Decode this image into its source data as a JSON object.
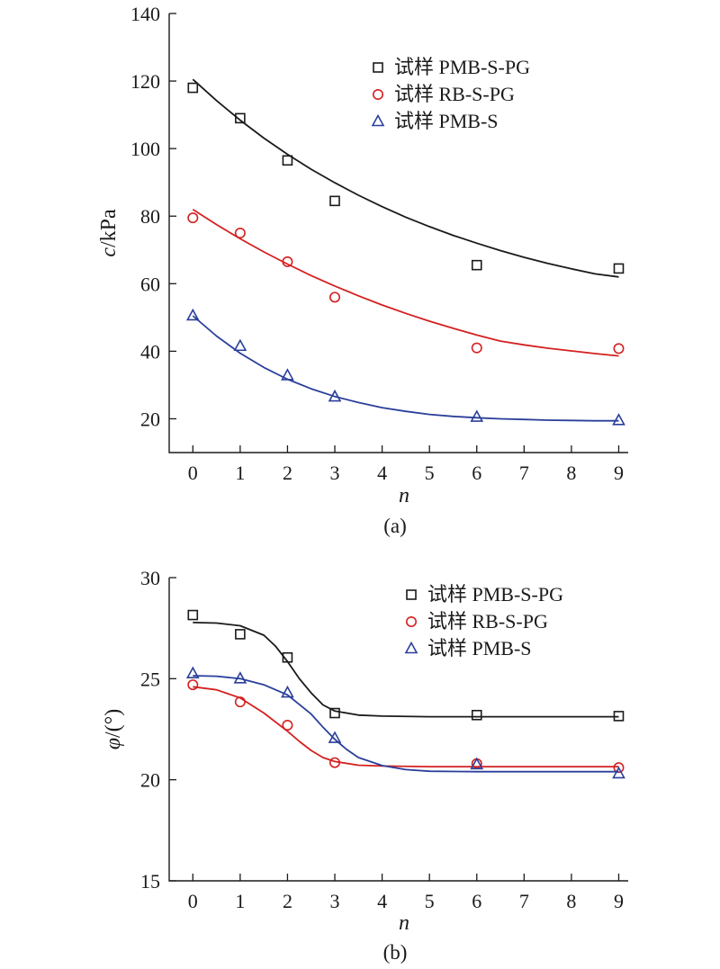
{
  "chart_data": [
    {
      "type": "scatter",
      "caption": "(a)",
      "ylabel_var": "c",
      "ylabel_unit": "/kPa",
      "xlabel": "n",
      "xlim": [
        -0.5,
        9.2
      ],
      "ylim": [
        10,
        140
      ],
      "xticks": [
        "0",
        "1",
        "2",
        "3",
        "4",
        "5",
        "6",
        "7",
        "8",
        "9"
      ],
      "yticks": [
        "20",
        "40",
        "60",
        "80",
        "100",
        "120",
        "140"
      ],
      "legend_position": "top-right",
      "series": [
        {
          "name": "试样 PMB-S-PG",
          "color": "#1a1a1a",
          "marker": "square",
          "points": [
            [
              0,
              118
            ],
            [
              1,
              109
            ],
            [
              2,
              96.5
            ],
            [
              3,
              84.5
            ],
            [
              6,
              65.5
            ],
            [
              9,
              64.5
            ]
          ],
          "fit": [
            [
              0,
              120.5
            ],
            [
              0.5,
              114.2
            ],
            [
              1,
              108.4
            ],
            [
              1.5,
              103.1
            ],
            [
              2,
              98.3
            ],
            [
              2.5,
              93.9
            ],
            [
              3,
              89.9
            ],
            [
              3.5,
              86.2
            ],
            [
              4,
              82.8
            ],
            [
              4.5,
              79.7
            ],
            [
              5,
              76.9
            ],
            [
              5.5,
              74.3
            ],
            [
              6,
              72
            ],
            [
              6.5,
              69.8
            ],
            [
              7,
              67.8
            ],
            [
              7.5,
              66
            ],
            [
              8,
              64.4
            ],
            [
              8.5,
              62.9
            ],
            [
              9,
              62
            ]
          ]
        },
        {
          "name": "试样 RB-S-PG",
          "color": "#d42020",
          "marker": "circle",
          "points": [
            [
              0,
              79.5
            ],
            [
              1,
              75
            ],
            [
              2,
              66.5
            ],
            [
              3,
              56
            ],
            [
              6,
              41
            ],
            [
              9,
              40.8
            ]
          ],
          "fit": [
            [
              0,
              82
            ],
            [
              0.5,
              77.5
            ],
            [
              1,
              73.3
            ],
            [
              1.5,
              69.4
            ],
            [
              2,
              65.8
            ],
            [
              2.5,
              62.4
            ],
            [
              3,
              59.3
            ],
            [
              3.5,
              56.4
            ],
            [
              4,
              53.7
            ],
            [
              4.5,
              51.2
            ],
            [
              5,
              48.9
            ],
            [
              5.5,
              46.8
            ],
            [
              6,
              44.8
            ],
            [
              6.5,
              43
            ],
            [
              7,
              41.9
            ],
            [
              7.5,
              40.9
            ],
            [
              8,
              40.1
            ],
            [
              8.5,
              39.3
            ],
            [
              9,
              38.6
            ]
          ]
        },
        {
          "name": "试样 PMB-S",
          "color": "#2a3f9a",
          "marker": "triangle",
          "points": [
            [
              0,
              50.5
            ],
            [
              1,
              41.5
            ],
            [
              2,
              32.8
            ],
            [
              3,
              26.5
            ],
            [
              6,
              20.5
            ],
            [
              9,
              19.5
            ]
          ],
          "fit": [
            [
              0,
              50.5
            ],
            [
              0.5,
              44.5
            ],
            [
              1,
              39.4
            ],
            [
              1.5,
              35.2
            ],
            [
              2,
              31.7
            ],
            [
              2.5,
              28.9
            ],
            [
              3,
              26.6
            ],
            [
              3.5,
              24.8
            ],
            [
              4,
              23.3
            ],
            [
              4.5,
              22.2
            ],
            [
              5,
              21.3
            ],
            [
              5.5,
              20.7
            ],
            [
              6,
              20.3
            ],
            [
              6.5,
              20
            ],
            [
              7,
              19.8
            ],
            [
              7.5,
              19.6
            ],
            [
              8,
              19.5
            ],
            [
              8.5,
              19.4
            ],
            [
              9,
              19.4
            ]
          ]
        }
      ]
    },
    {
      "type": "scatter",
      "caption": "(b)",
      "ylabel_var": "φ",
      "ylabel_unit": "/(°)",
      "xlabel": "n",
      "xlim": [
        -0.5,
        9.2
      ],
      "ylim": [
        15,
        30
      ],
      "xticks": [
        "0",
        "1",
        "2",
        "3",
        "4",
        "5",
        "6",
        "7",
        "8",
        "9"
      ],
      "yticks": [
        "15",
        "20",
        "25",
        "30"
      ],
      "legend_position": "top-right",
      "series": [
        {
          "name": "试样 PMB-S-PG",
          "color": "#1a1a1a",
          "marker": "square",
          "points": [
            [
              0,
              28.15
            ],
            [
              1,
              27.2
            ],
            [
              2,
              26.05
            ],
            [
              3,
              23.3
            ],
            [
              6,
              23.2
            ],
            [
              9,
              23.15
            ]
          ],
          "fit": [
            [
              0,
              27.78
            ],
            [
              0.5,
              27.75
            ],
            [
              1,
              27.62
            ],
            [
              1.5,
              27.15
            ],
            [
              1.75,
              26.6
            ],
            [
              2,
              25.85
            ],
            [
              2.25,
              25
            ],
            [
              2.5,
              24.3
            ],
            [
              2.75,
              23.7
            ],
            [
              3,
              23.4
            ],
            [
              3.5,
              23.2
            ],
            [
              4,
              23.15
            ],
            [
              5,
              23.12
            ],
            [
              6,
              23.12
            ],
            [
              7,
              23.12
            ],
            [
              8,
              23.12
            ],
            [
              9,
              23.12
            ]
          ]
        },
        {
          "name": "试样 RB-S-PG",
          "color": "#d42020",
          "marker": "circle",
          "points": [
            [
              0,
              24.7
            ],
            [
              1,
              23.85
            ],
            [
              2,
              22.7
            ],
            [
              3,
              20.85
            ],
            [
              6,
              20.8
            ],
            [
              9,
              20.6
            ]
          ],
          "fit": [
            [
              0,
              24.6
            ],
            [
              0.5,
              24.45
            ],
            [
              1,
              24.05
            ],
            [
              1.5,
              23.3
            ],
            [
              2,
              22.4
            ],
            [
              2.25,
              21.9
            ],
            [
              2.5,
              21.45
            ],
            [
              2.75,
              21.1
            ],
            [
              3,
              20.9
            ],
            [
              3.5,
              20.72
            ],
            [
              4,
              20.68
            ],
            [
              5,
              20.65
            ],
            [
              6,
              20.65
            ],
            [
              7,
              20.65
            ],
            [
              8,
              20.65
            ],
            [
              9,
              20.65
            ]
          ]
        },
        {
          "name": "试样 PMB-S",
          "color": "#2a3f9a",
          "marker": "triangle",
          "points": [
            [
              0,
              25.25
            ],
            [
              1,
              25
            ],
            [
              2,
              24.3
            ],
            [
              3,
              22.05
            ],
            [
              6,
              20.75
            ],
            [
              9,
              20.3
            ]
          ],
          "fit": [
            [
              0,
              25.15
            ],
            [
              0.5,
              25.12
            ],
            [
              1,
              25
            ],
            [
              1.5,
              24.7
            ],
            [
              2,
              24.2
            ],
            [
              2.5,
              23.25
            ],
            [
              2.75,
              22.6
            ],
            [
              3,
              22
            ],
            [
              3.25,
              21.5
            ],
            [
              3.5,
              21.1
            ],
            [
              4,
              20.7
            ],
            [
              4.5,
              20.5
            ],
            [
              5,
              20.42
            ],
            [
              6,
              20.4
            ],
            [
              7,
              20.4
            ],
            [
              8,
              20.4
            ],
            [
              9,
              20.4
            ]
          ]
        }
      ]
    }
  ]
}
